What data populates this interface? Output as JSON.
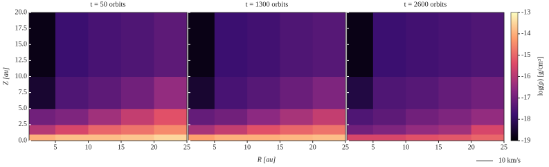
{
  "chart_data": [
    {
      "type": "heatmap",
      "title": "t = 50 orbits",
      "x_edges": [
        1,
        5,
        10,
        15,
        20,
        25
      ],
      "y_edges": [
        0,
        1,
        2.5,
        5,
        10,
        20
      ],
      "values": [
        [
          -14,
          -13.8,
          -13.8,
          -13.7,
          -13.5
        ],
        [
          -16,
          -15.5,
          -15,
          -14.8,
          -14.5
        ],
        [
          -17,
          -16.8,
          -16.3,
          -15.8,
          -15.3
        ],
        [
          -18.5,
          -17.5,
          -17.3,
          -17,
          -16.5
        ],
        [
          -18.8,
          -17.8,
          -17.6,
          -17.5,
          -17.3
        ]
      ],
      "xlim": [
        1,
        25
      ],
      "ylim": [
        0,
        20
      ],
      "xticks": [
        5,
        10,
        15,
        20,
        25
      ],
      "yticks": [
        {
          "value": 0,
          "label": "0.0"
        },
        {
          "value": 2.5,
          "label": "2.5"
        },
        {
          "value": 5,
          "label": "5.0"
        },
        {
          "value": 7.5,
          "label": "7.5"
        },
        {
          "value": 10,
          "label": "10.0"
        },
        {
          "value": 12.5,
          "label": "12.5"
        },
        {
          "value": 15,
          "label": "15.0"
        },
        {
          "value": 17.5,
          "label": "17.5"
        },
        {
          "value": 20,
          "label": "20.0"
        }
      ]
    },
    {
      "type": "heatmap",
      "title": "t = 1300 orbits",
      "x_edges": [
        1,
        5,
        10,
        15,
        20,
        25
      ],
      "y_edges": [
        0,
        1,
        2.5,
        5,
        10,
        20
      ],
      "values": [
        [
          -14.2,
          -14,
          -14,
          -13.9,
          -13.8
        ],
        [
          -16.2,
          -15.8,
          -15.3,
          -15,
          -14.8
        ],
        [
          -17.2,
          -17,
          -16.6,
          -16.2,
          -15.8
        ],
        [
          -18.5,
          -17.6,
          -17.4,
          -17.1,
          -16.8
        ],
        [
          -18.8,
          -17.8,
          -17.7,
          -17.5,
          -17.4
        ]
      ],
      "xlim": [
        1,
        25
      ],
      "ylim": [
        0,
        20
      ],
      "xticks": [
        5,
        10,
        15,
        20,
        25
      ]
    },
    {
      "type": "heatmap",
      "title": "t = 2600 orbits",
      "x_edges": [
        1,
        5,
        10,
        15,
        20,
        25
      ],
      "y_edges": [
        0,
        1,
        2.5,
        5,
        10,
        20
      ],
      "values": [
        [
          -15.5,
          -15.5,
          -15.3,
          -15.2,
          -15
        ],
        [
          -17,
          -16.8,
          -16.5,
          -16.3,
          -15.5
        ],
        [
          -17.5,
          -17.3,
          -17,
          -16.8,
          -16.5
        ],
        [
          -18.3,
          -17.5,
          -17.4,
          -17.2,
          -17
        ],
        [
          -18.8,
          -17.8,
          -17.7,
          -17.6,
          -17.5
        ]
      ],
      "xlim": [
        1,
        25
      ],
      "ylim": [
        0,
        20
      ],
      "xticks": [
        5,
        10,
        15,
        20,
        25
      ]
    }
  ],
  "figure": {
    "xlabel": "R [au]",
    "ylabel": "Z [au]",
    "colorbar": {
      "label": "log(ρ) [g/cm³]",
      "lim": [
        -19,
        -13
      ],
      "ticks": [
        -13,
        -14,
        -15,
        -16,
        -17,
        -18,
        -19
      ],
      "colors": [
        "#000004",
        "#3b0f70",
        "#8c2981",
        "#de4968",
        "#fe9f6d",
        "#fcfdbf"
      ]
    },
    "key_label": "10 km/s"
  }
}
